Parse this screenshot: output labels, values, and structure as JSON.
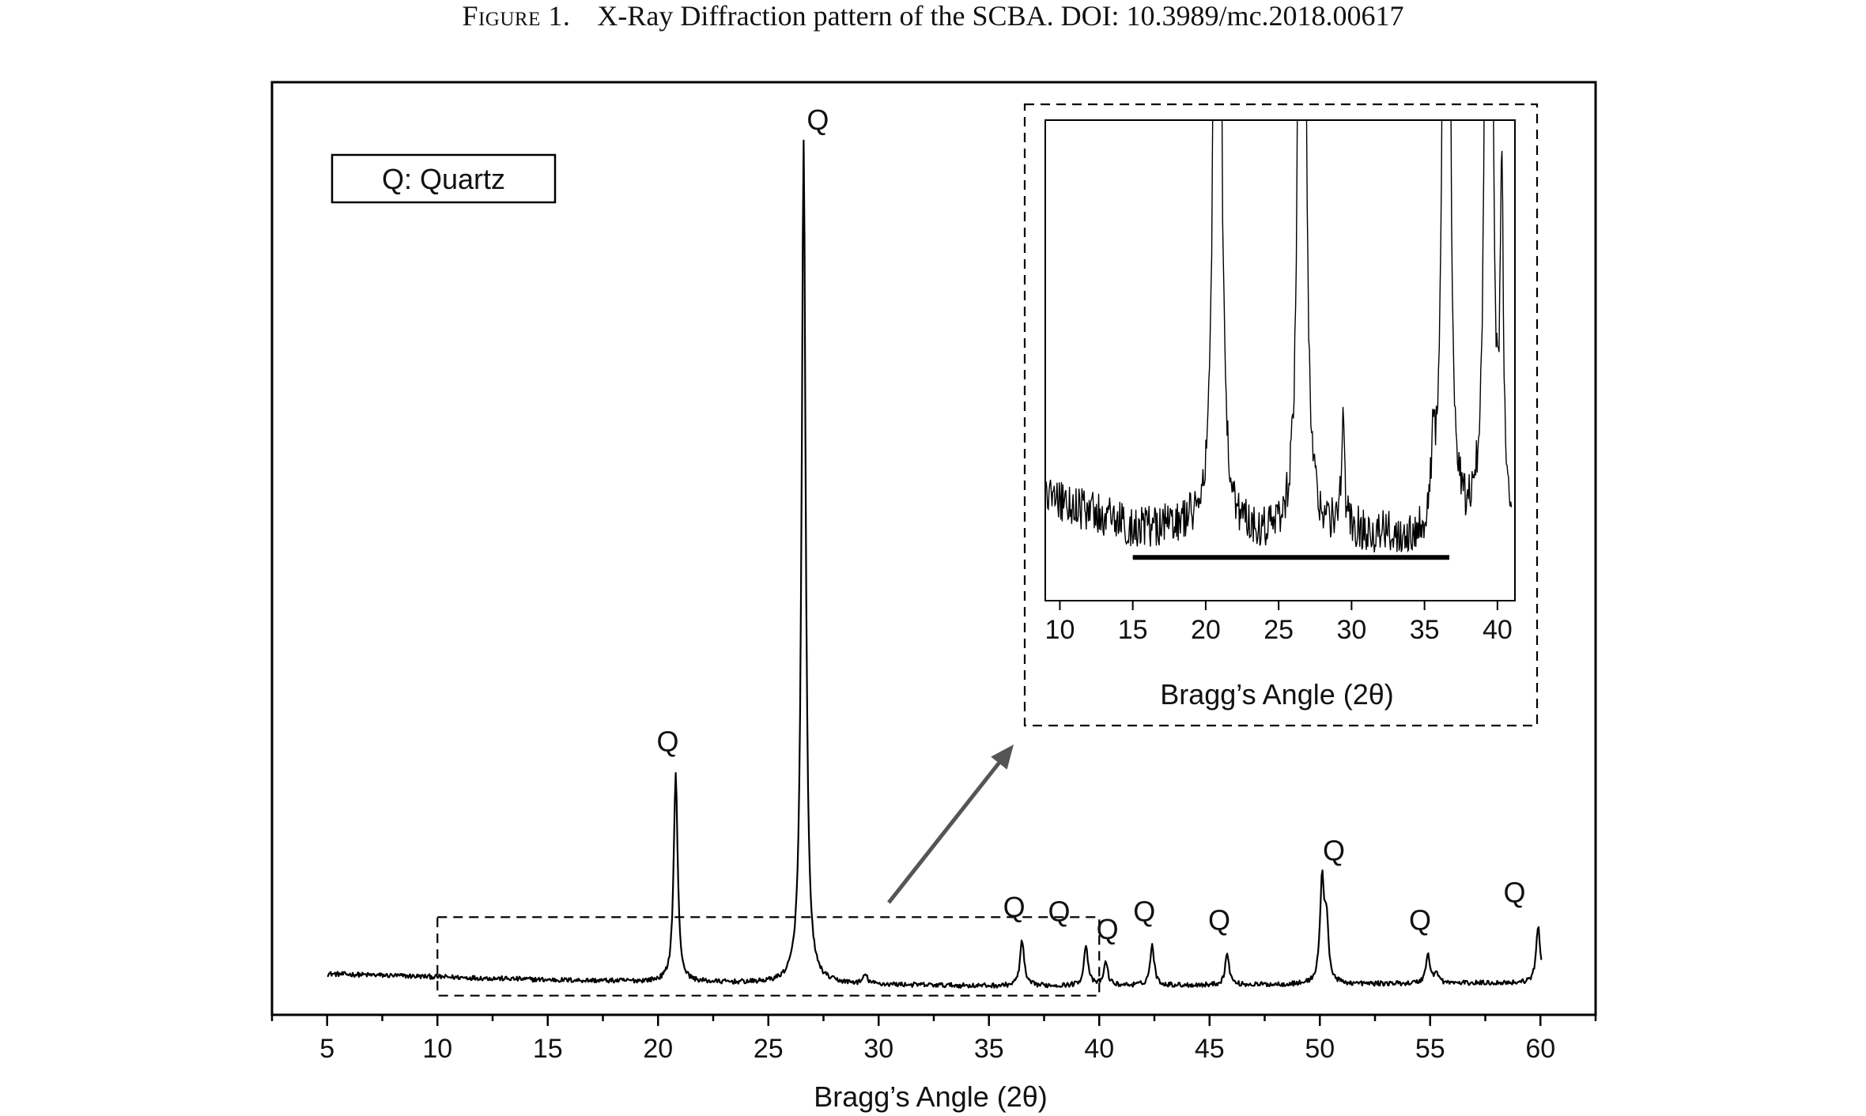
{
  "caption": {
    "prefix": "Figure 1.",
    "text": "X-Ray Diffraction pattern of the SCBA. DOI: 10.3989/mc.2018.00617"
  },
  "chart_data": [
    {
      "type": "line",
      "title": "",
      "xlabel": "Bragg’s Angle (2θ)",
      "ylabel": "",
      "xlim": [
        2.5,
        62.5
      ],
      "xticks": [
        5,
        10,
        15,
        20,
        25,
        30,
        35,
        40,
        45,
        50,
        55,
        60
      ],
      "ylim": [
        0,
        100
      ],
      "yticks": [],
      "grid": false,
      "legend": {
        "text": "Q: Quartz",
        "placement": "top-left"
      },
      "baseline": {
        "x": [
          5,
          15,
          25,
          35,
          45,
          55,
          60
        ],
        "y": [
          4.7,
          4.0,
          3.6,
          3.3,
          3.4,
          3.6,
          3.7
        ]
      },
      "series": [
        {
          "peaks": [
            {
              "x": 20.8,
              "y": 27.5,
              "label": "Q"
            },
            {
              "x": 26.6,
              "y": 100,
              "label": "Q"
            },
            {
              "x": 29.4,
              "y": 4.5,
              "label": ""
            },
            {
              "x": 36.5,
              "y": 8.5,
              "label": "Q"
            },
            {
              "x": 39.4,
              "y": 8.0,
              "label": "Q"
            },
            {
              "x": 40.3,
              "y": 6.0,
              "label": "Q"
            },
            {
              "x": 42.4,
              "y": 8.0,
              "label": "Q"
            },
            {
              "x": 45.8,
              "y": 7.0,
              "label": "Q"
            },
            {
              "x": 50.1,
              "y": 15.0,
              "label": "Q"
            },
            {
              "x": 50.3,
              "y": 10.0,
              "label": ""
            },
            {
              "x": 54.9,
              "y": 7.0,
              "label": "Q"
            },
            {
              "x": 55.3,
              "y": 4.8,
              "label": ""
            },
            {
              "x": 59.9,
              "y": 10.2,
              "label": "Q"
            }
          ]
        }
      ],
      "highlight_region": {
        "x": [
          10,
          40
        ],
        "y": [
          2.2,
          11.2
        ]
      }
    },
    {
      "type": "line",
      "title": "",
      "xlabel": "Bragg’s Angle (2θ)",
      "ylabel": "",
      "xlim": [
        9,
        41.2
      ],
      "xticks": [
        10,
        15,
        20,
        25,
        30,
        35,
        40
      ],
      "ylim": [
        0,
        100
      ],
      "yticks": [],
      "grid": false,
      "baseline": {
        "x": [
          9,
          15,
          20,
          25,
          30,
          35,
          37,
          41
        ],
        "y": [
          22,
          15,
          15,
          13,
          14,
          12,
          12,
          13
        ]
      },
      "series": [
        {
          "peaks": [
            {
              "x": 20.8,
              "y": 100
            },
            {
              "x": 26.6,
              "y": 100
            },
            {
              "x": 29.4,
              "y": 36
            },
            {
              "x": 35.6,
              "y": 26
            },
            {
              "x": 36.5,
              "y": 100
            },
            {
              "x": 39.4,
              "y": 100
            },
            {
              "x": 40.3,
              "y": 82
            }
          ]
        }
      ],
      "marker_bar": {
        "x": [
          15,
          36.7
        ],
        "y": 9
      }
    }
  ]
}
